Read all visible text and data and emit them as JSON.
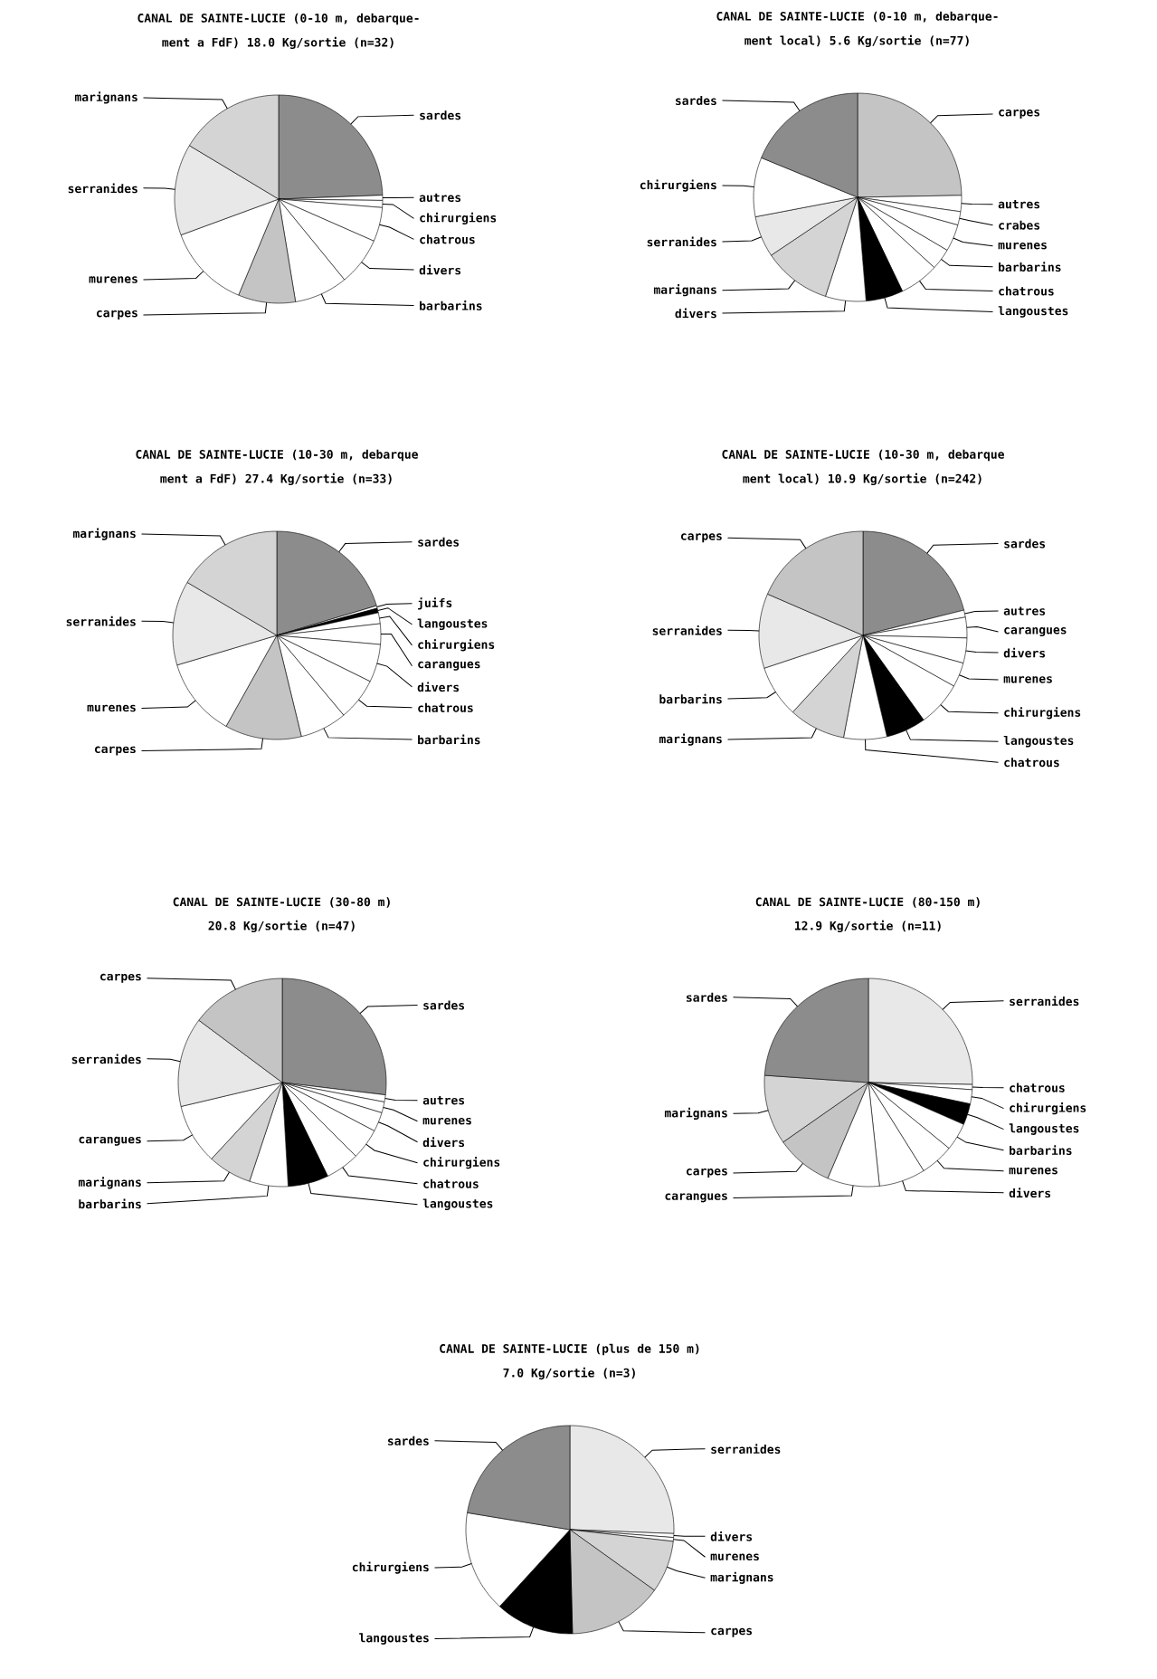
{
  "chart_data": [
    {
      "type": "pie",
      "title": "CANAL DE SAINTE-LUCIE (0-10 m, debarque-",
      "subtitle": "ment a FdF) 18.0 Kg/sortie (n=32)",
      "categories": [
        "sardes",
        "autres",
        "chirurgiens",
        "chatrous",
        "divers",
        "barbarins",
        "carpes",
        "murenes",
        "serranides",
        "marignans"
      ],
      "values": [
        24.4,
        0.8,
        1.1,
        5.3,
        7.5,
        8.3,
        8.9,
        13.1,
        14.2,
        16.4
      ],
      "colors": [
        "#8c8c8c",
        "#ffffff",
        "#ffffff",
        "#ffffff",
        "#ffffff",
        "#ffffff",
        "#c4c4c4",
        "#ffffff",
        "#e8e8e8",
        "#d4d4d4"
      ]
    },
    {
      "type": "pie",
      "title": "CANAL DE SAINTE-LUCIE (0-10 m, debarque-",
      "subtitle": "ment local) 5.6 Kg/sortie (n=77)",
      "categories": [
        "carpes",
        "autres",
        "crabes",
        "murenes",
        "barbarins",
        "chatrous",
        "langoustes",
        "divers",
        "marignans",
        "serranides",
        "chirurgiens",
        "sardes"
      ],
      "values": [
        24.7,
        2.5,
        2.1,
        4.2,
        3.3,
        6.1,
        5.8,
        6.3,
        10.6,
        6.4,
        9.2,
        18.8
      ],
      "colors": [
        "#c4c4c4",
        "#ffffff",
        "#ffffff",
        "#ffffff",
        "#ffffff",
        "#ffffff",
        "#000000",
        "#ffffff",
        "#d4d4d4",
        "#e8e8e8",
        "#ffffff",
        "#8c8c8c"
      ]
    },
    {
      "type": "pie",
      "title": "CANAL DE SAINTE-LUCIE (10-30 m, debarque",
      "subtitle": "ment a FdF) 27.4 Kg/sortie (n=33)",
      "categories": [
        "sardes",
        "juifs",
        "langoustes",
        "chirurgiens",
        "carangues",
        "divers",
        "chatrous",
        "barbarins",
        "carpes",
        "murenes",
        "serranides",
        "marignans"
      ],
      "values": [
        20.4,
        0.4,
        0.7,
        1.7,
        3.2,
        5.9,
        6.6,
        7.3,
        11.9,
        12.3,
        13.1,
        16.5
      ],
      "colors": [
        "#8c8c8c",
        "#ffffff",
        "#000000",
        "#ffffff",
        "#ffffff",
        "#ffffff",
        "#ffffff",
        "#ffffff",
        "#c4c4c4",
        "#ffffff",
        "#e8e8e8",
        "#d4d4d4"
      ]
    },
    {
      "type": "pie",
      "title": "CANAL DE SAINTE-LUCIE (10-30 m, debarque",
      "subtitle": "ment local) 10.9 Kg/sortie (n=242)",
      "categories": [
        "sardes",
        "autres",
        "carangues",
        "divers",
        "murenes",
        "chirurgiens",
        "langoustes",
        "chatrous",
        "marignans",
        "barbarins",
        "serranides",
        "carpes"
      ],
      "values": [
        21.1,
        1.1,
        3.2,
        3.9,
        3.8,
        7.0,
        6.2,
        6.7,
        8.8,
        8.1,
        11.6,
        18.5
      ],
      "colors": [
        "#8c8c8c",
        "#ffffff",
        "#ffffff",
        "#ffffff",
        "#ffffff",
        "#ffffff",
        "#000000",
        "#ffffff",
        "#d4d4d4",
        "#ffffff",
        "#e8e8e8",
        "#c4c4c4"
      ]
    },
    {
      "type": "pie",
      "title": "CANAL DE SAINTE-LUCIE (30-80 m)",
      "subtitle": "20.8 Kg/sortie (n=47)",
      "categories": [
        "sardes",
        "autres",
        "murenes",
        "divers",
        "chirurgiens",
        "chatrous",
        "langoustes",
        "barbarins",
        "marignans",
        "carangues",
        "serranides",
        "carpes"
      ],
      "values": [
        26.9,
        1.1,
        1.7,
        3.0,
        4.8,
        5.3,
        6.3,
        6.0,
        6.8,
        9.4,
        13.9,
        14.8
      ],
      "colors": [
        "#8c8c8c",
        "#ffffff",
        "#ffffff",
        "#ffffff",
        "#ffffff",
        "#ffffff",
        "#000000",
        "#ffffff",
        "#d4d4d4",
        "#ffffff",
        "#e8e8e8",
        "#c4c4c4"
      ]
    },
    {
      "type": "pie",
      "title": "CANAL DE SAINTE-LUCIE (80-150 m)",
      "subtitle": "12.9 Kg/sortie (n=11)",
      "categories": [
        "serranides",
        "chatrous",
        "chirurgiens",
        "langoustes",
        "barbarins",
        "murenes",
        "divers",
        "carangues",
        "carpes",
        "marignans",
        "sardes"
      ],
      "values": [
        25.3,
        0.8,
        2.2,
        3.3,
        4.3,
        5.2,
        7.2,
        8.1,
        8.9,
        10.8,
        23.9
      ],
      "colors": [
        "#e8e8e8",
        "#ffffff",
        "#ffffff",
        "#000000",
        "#ffffff",
        "#ffffff",
        "#ffffff",
        "#ffffff",
        "#c4c4c4",
        "#d4d4d4",
        "#8c8c8c"
      ]
    },
    {
      "type": "pie",
      "title": "CANAL DE SAINTE-LUCIE (plus de 150 m)",
      "subtitle": "7.0 Kg/sortie (n=3)",
      "categories": [
        "serranides",
        "divers",
        "murenes",
        "marignans",
        "carpes",
        "langoustes",
        "chirurgiens",
        "sardes"
      ],
      "values": [
        25.6,
        0.6,
        0.6,
        8.1,
        14.7,
        12.2,
        15.8,
        22.4
      ],
      "colors": [
        "#e8e8e8",
        "#ffffff",
        "#ffffff",
        "#d4d4d4",
        "#c4c4c4",
        "#000000",
        "#ffffff",
        "#8c8c8c"
      ]
    }
  ]
}
